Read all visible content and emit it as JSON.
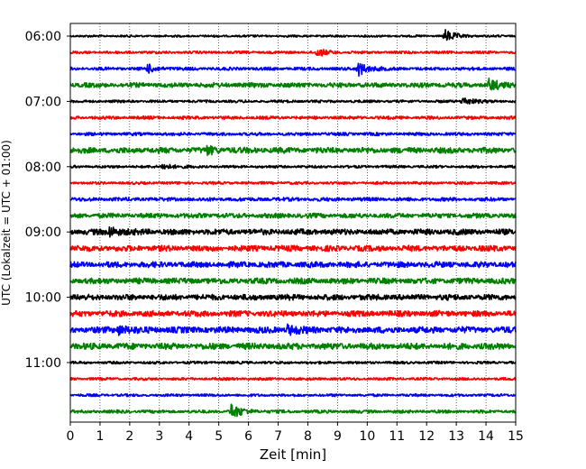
{
  "chart_data": {
    "type": "line",
    "title": "",
    "xlabel": "Zeit  [min]",
    "ylabel": "UTC (Lokalzeit = UTC + 01:00)",
    "xlim": [
      0,
      15
    ],
    "x_ticks": [
      "0",
      "1",
      "2",
      "3",
      "4",
      "5",
      "6",
      "7",
      "8",
      "9",
      "10",
      "11",
      "12",
      "13",
      "14",
      "15"
    ],
    "y_ticks": [
      {
        "label": "06:00",
        "trace": 0
      },
      {
        "label": "07:00",
        "trace": 4
      },
      {
        "label": "08:00",
        "trace": 8
      },
      {
        "label": "09:00",
        "trace": 12
      },
      {
        "label": "10:00",
        "trace": 16
      },
      {
        "label": "11:00",
        "trace": 20
      }
    ],
    "grid": "vertical-dotted",
    "trace_colors": [
      "#000000",
      "#ff0000",
      "#0000ff",
      "#008000"
    ],
    "traces": [
      {
        "start": "06:00",
        "color": "#000000",
        "noise": 0.2,
        "events": [
          {
            "t": 12.6,
            "amp": 1.2
          }
        ]
      },
      {
        "start": "06:15",
        "color": "#ff0000",
        "noise": 0.25,
        "events": [
          {
            "t": 8.3,
            "amp": 0.7
          }
        ]
      },
      {
        "start": "06:30",
        "color": "#0000ff",
        "noise": 0.3,
        "events": [
          {
            "t": 2.6,
            "amp": 0.7
          },
          {
            "t": 9.7,
            "amp": 1.2
          }
        ]
      },
      {
        "start": "06:45",
        "color": "#008000",
        "noise": 0.45,
        "events": [
          {
            "t": 14.1,
            "amp": 1.0
          }
        ]
      },
      {
        "start": "07:00",
        "color": "#000000",
        "noise": 0.25,
        "events": [
          {
            "t": 13.2,
            "amp": 0.8
          }
        ]
      },
      {
        "start": "07:15",
        "color": "#ff0000",
        "noise": 0.3,
        "events": []
      },
      {
        "start": "07:30",
        "color": "#0000ff",
        "noise": 0.3,
        "events": []
      },
      {
        "start": "07:45",
        "color": "#008000",
        "noise": 0.55,
        "events": [
          {
            "t": 4.6,
            "amp": 0.6
          }
        ]
      },
      {
        "start": "08:00",
        "color": "#000000",
        "noise": 0.25,
        "events": [
          {
            "t": 3.1,
            "amp": 0.6
          }
        ]
      },
      {
        "start": "08:15",
        "color": "#ff0000",
        "noise": 0.25,
        "events": []
      },
      {
        "start": "08:30",
        "color": "#0000ff",
        "noise": 0.35,
        "events": []
      },
      {
        "start": "08:45",
        "color": "#008000",
        "noise": 0.45,
        "events": []
      },
      {
        "start": "09:00",
        "color": "#000000",
        "noise": 0.55,
        "events": [
          {
            "t": 1.3,
            "amp": 0.9
          }
        ]
      },
      {
        "start": "09:15",
        "color": "#ff0000",
        "noise": 0.55,
        "events": []
      },
      {
        "start": "09:30",
        "color": "#0000ff",
        "noise": 0.55,
        "events": []
      },
      {
        "start": "09:45",
        "color": "#008000",
        "noise": 0.55,
        "events": []
      },
      {
        "start": "10:00",
        "color": "#000000",
        "noise": 0.55,
        "events": []
      },
      {
        "start": "10:15",
        "color": "#ff0000",
        "noise": 0.55,
        "events": []
      },
      {
        "start": "10:30",
        "color": "#0000ff",
        "noise": 0.6,
        "events": [
          {
            "t": 1.6,
            "amp": 0.8
          },
          {
            "t": 7.3,
            "amp": 0.8
          }
        ]
      },
      {
        "start": "10:45",
        "color": "#008000",
        "noise": 0.6,
        "events": []
      },
      {
        "start": "11:00",
        "color": "#000000",
        "noise": 0.25,
        "events": []
      },
      {
        "start": "11:15",
        "color": "#ff0000",
        "noise": 0.25,
        "events": []
      },
      {
        "start": "11:30",
        "color": "#0000ff",
        "noise": 0.25,
        "events": []
      },
      {
        "start": "11:45",
        "color": "#008000",
        "noise": 0.3,
        "events": [
          {
            "t": 5.4,
            "amp": 1.4
          }
        ]
      }
    ]
  }
}
